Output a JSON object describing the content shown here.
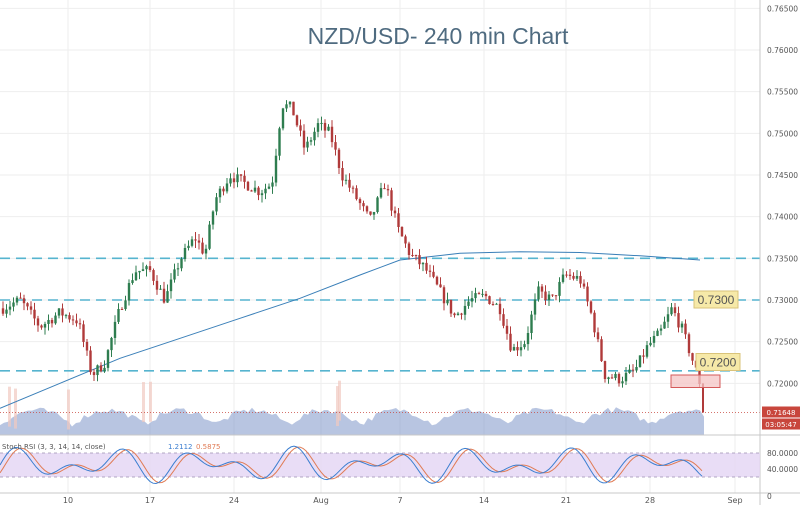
{
  "chart_data": {
    "type": "candlestick",
    "title": "NZD/USD- 240 min Chart",
    "grid": true,
    "y_axis": {
      "side": "right",
      "range": [
        0.7138,
        0.766
      ],
      "ticks": [
        "0.76500",
        "0.76000",
        "0.75500",
        "0.75000",
        "0.74500",
        "0.74000",
        "0.73500",
        "0.73000",
        "0.72500",
        "0.72000"
      ]
    },
    "x_axis": {
      "ticks": [
        "10",
        "17",
        "24",
        "Aug",
        "7",
        "14",
        "21",
        "28",
        "Sep"
      ]
    },
    "horizontal_levels": [
      0.735,
      0.73,
      0.7215
    ],
    "annotations": [
      {
        "text": "0.7300",
        "y": 0.73
      },
      {
        "text": "0.7200",
        "y": 0.7225
      }
    ],
    "highlight_zone": {
      "y_low": 0.7195,
      "y_high": 0.721
    },
    "price_tag": "0.71648",
    "countdown_tag": "03:05:47",
    "moving_average": [
      [
        0,
        0.717
      ],
      [
        60,
        0.72
      ],
      [
        120,
        0.723
      ],
      [
        170,
        0.725
      ],
      [
        240,
        0.7278
      ],
      [
        300,
        0.7302
      ],
      [
        360,
        0.733
      ],
      [
        400,
        0.7348
      ],
      [
        460,
        0.7356
      ],
      [
        520,
        0.7358
      ],
      [
        580,
        0.7357
      ],
      [
        640,
        0.7353
      ],
      [
        700,
        0.7348
      ]
    ],
    "price_path": [
      [
        2,
        0.729
      ],
      [
        20,
        0.73
      ],
      [
        40,
        0.7268
      ],
      [
        60,
        0.7285
      ],
      [
        78,
        0.7275
      ],
      [
        92,
        0.721
      ],
      [
        105,
        0.7225
      ],
      [
        120,
        0.729
      ],
      [
        135,
        0.7335
      ],
      [
        150,
        0.7335
      ],
      [
        165,
        0.73
      ],
      [
        180,
        0.7348
      ],
      [
        195,
        0.7375
      ],
      [
        205,
        0.7355
      ],
      [
        215,
        0.742
      ],
      [
        230,
        0.745
      ],
      [
        245,
        0.744
      ],
      [
        260,
        0.743
      ],
      [
        272,
        0.744
      ],
      [
        282,
        0.7535
      ],
      [
        292,
        0.753
      ],
      [
        305,
        0.748
      ],
      [
        318,
        0.751
      ],
      [
        330,
        0.75
      ],
      [
        342,
        0.745
      ],
      [
        355,
        0.7425
      ],
      [
        370,
        0.7395
      ],
      [
        385,
        0.744
      ],
      [
        398,
        0.7385
      ],
      [
        410,
        0.7355
      ],
      [
        425,
        0.7338
      ],
      [
        440,
        0.731
      ],
      [
        455,
        0.728
      ],
      [
        470,
        0.73
      ],
      [
        485,
        0.7305
      ],
      [
        500,
        0.729
      ],
      [
        512,
        0.724
      ],
      [
        525,
        0.725
      ],
      [
        538,
        0.731
      ],
      [
        552,
        0.73
      ],
      [
        565,
        0.733
      ],
      [
        580,
        0.7325
      ],
      [
        592,
        0.728
      ],
      [
        605,
        0.721
      ],
      [
        620,
        0.7205
      ],
      [
        635,
        0.7215
      ],
      [
        648,
        0.7245
      ],
      [
        660,
        0.726
      ],
      [
        672,
        0.729
      ],
      [
        682,
        0.7265
      ],
      [
        692,
        0.723
      ],
      [
        700,
        0.72
      ],
      [
        703,
        0.7165
      ]
    ],
    "volume_label": "Volume",
    "indicator": {
      "label": "Stoch RSI (3, 3, 14, 14, close)",
      "values": [
        "1.2112",
        "0.5875"
      ],
      "ticks": [
        "80.0000",
        "40.0000",
        "0"
      ],
      "band": [
        20,
        80
      ]
    },
    "colors": {
      "up": "#2e7d4f",
      "down": "#b03a3a",
      "level_line": "#56b4cf",
      "ma_line": "#3a7fb8",
      "annotation_box": "#f6e9a8",
      "zone_fill": "#f4c4c4",
      "zone_stroke": "#d45a5a",
      "price_tag": "#c8463c",
      "stoch_band": "#e4d4f4",
      "stoch_k": "#3b7ed0",
      "stoch_d": "#e07b54",
      "volume": "#7e96c8"
    }
  }
}
